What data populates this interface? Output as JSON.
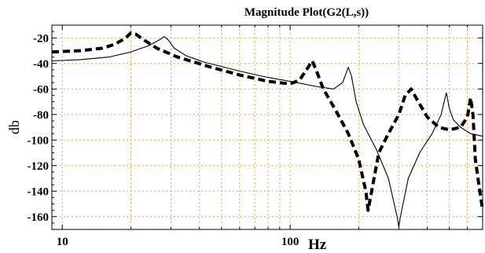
{
  "chart_data": {
    "type": "line",
    "title": "Magnitude Plot(G2(L,s))",
    "ylabel": "db",
    "xlabel": "Hz",
    "x_scale": "log",
    "xlim": [
      9,
      700
    ],
    "ylim": [
      -170,
      -10
    ],
    "x_ticks": [
      10,
      100
    ],
    "y_ticks": [
      -20,
      -40,
      -60,
      -80,
      -100,
      -120,
      -140,
      -160
    ],
    "grid": true,
    "grid_color": "#e8a23a",
    "series": [
      {
        "style": "solid",
        "color": "#000000",
        "points": [
          [
            9,
            -38
          ],
          [
            12,
            -37
          ],
          [
            16,
            -35
          ],
          [
            20,
            -31
          ],
          [
            24,
            -26
          ],
          [
            27,
            -21
          ],
          [
            28,
            -19
          ],
          [
            29,
            -21
          ],
          [
            31,
            -28
          ],
          [
            35,
            -34
          ],
          [
            42,
            -39
          ],
          [
            60,
            -46
          ],
          [
            80,
            -51
          ],
          [
            100,
            -54
          ],
          [
            130,
            -58
          ],
          [
            155,
            -60
          ],
          [
            170,
            -55
          ],
          [
            180,
            -43
          ],
          [
            186,
            -50
          ],
          [
            195,
            -70
          ],
          [
            210,
            -88
          ],
          [
            240,
            -108
          ],
          [
            270,
            -130
          ],
          [
            295,
            -160
          ],
          [
            300,
            -168
          ],
          [
            305,
            -160
          ],
          [
            330,
            -130
          ],
          [
            370,
            -110
          ],
          [
            420,
            -95
          ],
          [
            460,
            -80
          ],
          [
            485,
            -63
          ],
          [
            500,
            -75
          ],
          [
            520,
            -84
          ],
          [
            560,
            -90
          ],
          [
            620,
            -95
          ],
          [
            700,
            -97
          ]
        ]
      },
      {
        "style": "dashed",
        "color": "#000000",
        "points": [
          [
            9,
            -31
          ],
          [
            12,
            -30
          ],
          [
            15,
            -28
          ],
          [
            17,
            -25
          ],
          [
            19,
            -20
          ],
          [
            20,
            -16
          ],
          [
            21,
            -17
          ],
          [
            23,
            -22
          ],
          [
            26,
            -28
          ],
          [
            32,
            -35
          ],
          [
            45,
            -43
          ],
          [
            60,
            -49
          ],
          [
            80,
            -54
          ],
          [
            100,
            -56
          ],
          [
            110,
            -53
          ],
          [
            118,
            -45
          ],
          [
            125,
            -38
          ],
          [
            130,
            -45
          ],
          [
            140,
            -60
          ],
          [
            160,
            -78
          ],
          [
            180,
            -95
          ],
          [
            200,
            -115
          ],
          [
            215,
            -140
          ],
          [
            220,
            -155
          ],
          [
            228,
            -140
          ],
          [
            245,
            -110
          ],
          [
            270,
            -95
          ],
          [
            300,
            -80
          ],
          [
            320,
            -65
          ],
          [
            340,
            -60
          ],
          [
            360,
            -68
          ],
          [
            400,
            -82
          ],
          [
            450,
            -90
          ],
          [
            500,
            -92
          ],
          [
            560,
            -90
          ],
          [
            600,
            -82
          ],
          [
            620,
            -67
          ],
          [
            635,
            -80
          ],
          [
            650,
            -115
          ],
          [
            680,
            -140
          ],
          [
            700,
            -155
          ]
        ]
      }
    ]
  }
}
